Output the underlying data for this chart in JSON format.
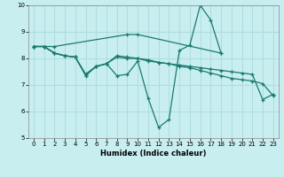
{
  "title": "",
  "xlabel": "Humidex (Indice chaleur)",
  "ylabel": "",
  "xlim": [
    -0.5,
    23.5
  ],
  "ylim": [
    5,
    10
  ],
  "yticks": [
    5,
    6,
    7,
    8,
    9,
    10
  ],
  "xticks": [
    0,
    1,
    2,
    3,
    4,
    5,
    6,
    7,
    8,
    9,
    10,
    11,
    12,
    13,
    14,
    15,
    16,
    17,
    18,
    19,
    20,
    21,
    22,
    23
  ],
  "bg_color": "#c8eef0",
  "line_color": "#1a7a6e",
  "grid_color": "#b0dde0",
  "series": [
    {
      "x": [
        0,
        1,
        2,
        9,
        10,
        18
      ],
      "y": [
        8.45,
        8.45,
        8.45,
        8.9,
        8.9,
        8.2
      ]
    },
    {
      "x": [
        0,
        1,
        2,
        3,
        4,
        5,
        6,
        7,
        8,
        9,
        10,
        11,
        12,
        13,
        14,
        15,
        16,
        17,
        18
      ],
      "y": [
        8.45,
        8.45,
        8.2,
        8.1,
        8.05,
        7.35,
        7.7,
        7.8,
        7.35,
        7.4,
        7.9,
        6.5,
        5.4,
        5.7,
        8.3,
        8.5,
        10.0,
        9.45,
        8.2
      ]
    },
    {
      "x": [
        0,
        1,
        2,
        3,
        4,
        5,
        6,
        7,
        8,
        9,
        10,
        11,
        12,
        13,
        14,
        15,
        16,
        17,
        18,
        19,
        20,
        21,
        22,
        23
      ],
      "y": [
        8.45,
        8.45,
        8.2,
        8.1,
        8.05,
        7.4,
        7.7,
        7.8,
        8.1,
        8.05,
        8.0,
        7.95,
        7.85,
        7.8,
        7.7,
        7.65,
        7.55,
        7.45,
        7.35,
        7.25,
        7.2,
        7.15,
        7.05,
        6.6
      ]
    },
    {
      "x": [
        0,
        1,
        2,
        3,
        4,
        5,
        6,
        7,
        8,
        9,
        10,
        11,
        12,
        13,
        14,
        15,
        16,
        17,
        18,
        19,
        20,
        21,
        22,
        23
      ],
      "y": [
        8.45,
        8.45,
        8.2,
        8.1,
        8.05,
        7.4,
        7.7,
        7.8,
        8.05,
        8.0,
        8.0,
        7.9,
        7.85,
        7.8,
        7.75,
        7.7,
        7.65,
        7.6,
        7.55,
        7.5,
        7.45,
        7.4,
        6.45,
        6.65
      ]
    }
  ]
}
